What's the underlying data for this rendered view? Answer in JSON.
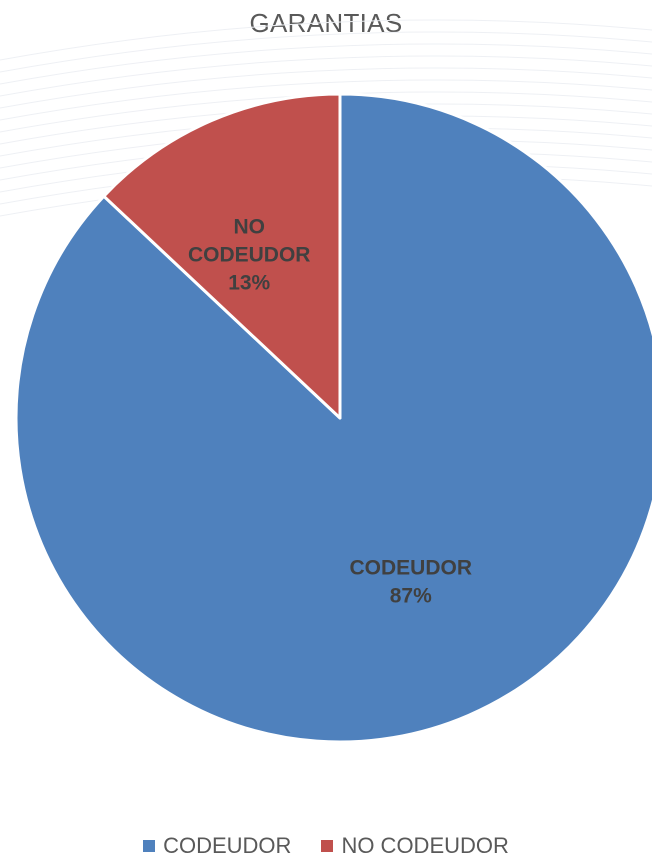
{
  "chart_data": {
    "type": "pie",
    "title": "GARANTIAS",
    "categories": [
      "CODEUDOR",
      "NO CODEUDOR"
    ],
    "values": [
      87,
      13
    ],
    "data_labels": [
      [
        "CODEUDOR",
        "87%"
      ],
      [
        "NO",
        "CODEUDOR",
        "13%"
      ]
    ],
    "colors": [
      "#4F81BD",
      "#C0504D"
    ],
    "legend_position": "bottom",
    "start_angle": "12 o'clock",
    "direction": "clockwise"
  }
}
